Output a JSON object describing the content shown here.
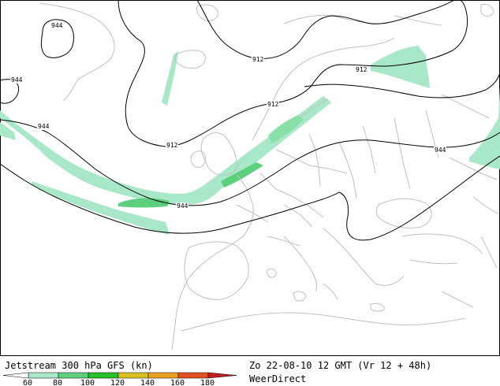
{
  "map": {
    "title": "Jetstream 300 hPa GFS (kn)",
    "valid_time": "Zo 22-08-10 12 GMT (Vr 12 + 48h)",
    "source": "WeerDirect",
    "contour_labels": [
      "944",
      "944",
      "944",
      "912",
      "912",
      "912",
      "912",
      "944",
      "944"
    ],
    "colors": {
      "border": "#c0c0c0",
      "contour": "#000000",
      "jet_60": "#a8e8c8",
      "jet_80": "#88e0a8",
      "jet_100": "#5cd07c",
      "jet_120": "#28c028",
      "jet_140": "#d8c020",
      "jet_160": "#e8a020",
      "jet_180": "#e05020",
      "jet_max": "#c02020"
    }
  },
  "legend": {
    "ticks": [
      "60",
      "80",
      "100",
      "120",
      "140",
      "160",
      "180"
    ]
  }
}
